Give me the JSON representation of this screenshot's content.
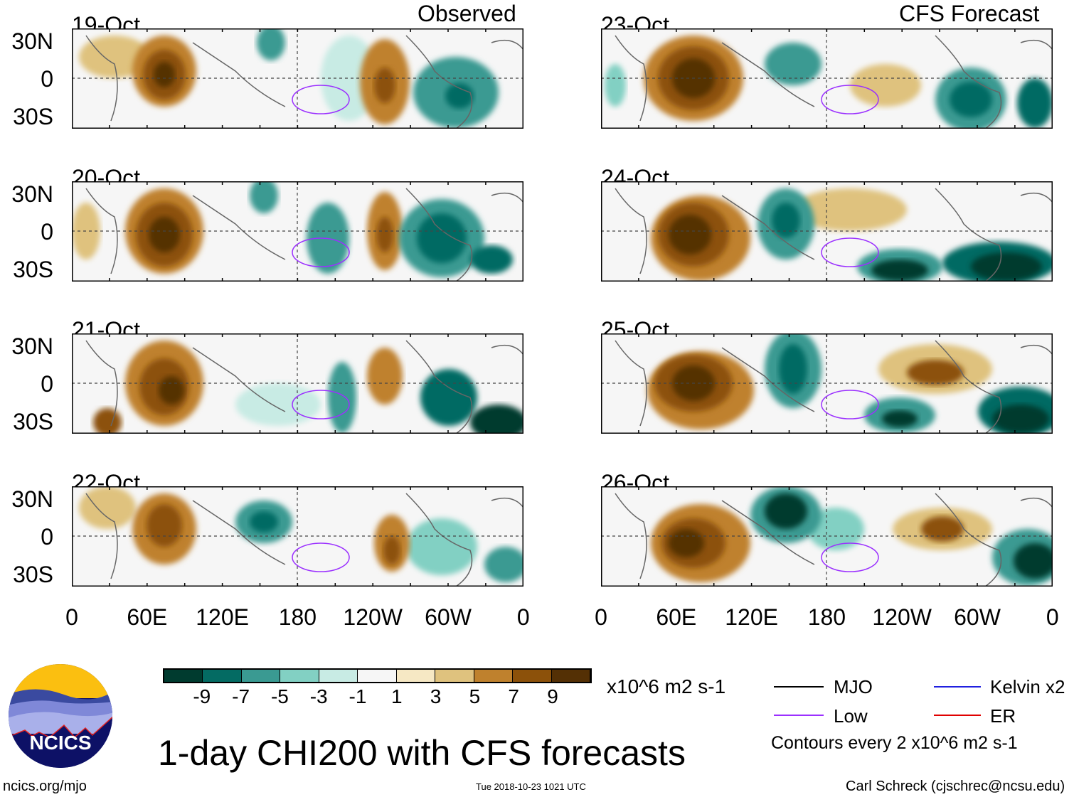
{
  "left_header": "Observed",
  "right_header": "CFS Forecast",
  "panels_left": [
    "19-Oct",
    "20-Oct",
    "21-Oct",
    "22-Oct"
  ],
  "panels_right": [
    "23-Oct",
    "24-Oct",
    "25-Oct",
    "26-Oct"
  ],
  "lat_labels": [
    "30N",
    "0",
    "30S"
  ],
  "lon_labels": [
    "0",
    "60E",
    "120E",
    "180",
    "120W",
    "60W",
    "0"
  ],
  "colorbar": {
    "colors": [
      "#003b2f",
      "#046b63",
      "#3a9a92",
      "#82d0c3",
      "#c8ebe4",
      "#f6f6f6",
      "#f6e8c4",
      "#dfc27e",
      "#bf812d",
      "#8c510a",
      "#543005"
    ],
    "labels": [
      "-9",
      "-7",
      "-5",
      "-3",
      "-1",
      "1",
      "3",
      "5",
      "7",
      "9"
    ],
    "units": "x10^6 m2 s-1"
  },
  "legend": {
    "items": [
      {
        "label": "MJO",
        "color": "#000000"
      },
      {
        "label": "Kelvin x2",
        "color": "#2020e0"
      },
      {
        "label": "Low",
        "color": "#9b30ff"
      },
      {
        "label": "ER",
        "color": "#e00000"
      }
    ],
    "note": "Contours every 2 x10^6 m2 s-1"
  },
  "title": "1-day CHI200 with CFS forecasts",
  "logo_text": "NCICS",
  "website": "ncics.org/mjo",
  "timestamp": "Tue 2018-10-23 1021 UTC",
  "credit": "Carl Schreck (cjschrec@ncsu.edu)"
}
